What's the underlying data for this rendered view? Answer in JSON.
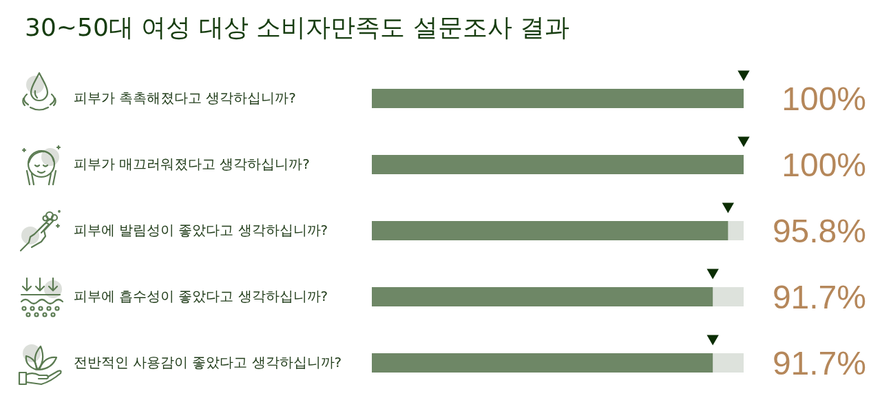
{
  "chart_data": {
    "type": "bar",
    "orientation": "horizontal",
    "title": "30~50대 여성 대상 소비자만족도 설문조사 결과",
    "categories": [
      "피부가 촉촉해졌다고 생각하십니까?",
      "피부가 매끄러워졌다고 생각하십니까?",
      "피부에 발림성이 좋았다고 생각하십니까?",
      "피부에 흡수성이 좋았다고 생각하십니까?",
      "전반적인 사용감이 좋았다고 생각하십니까?"
    ],
    "series": [
      {
        "color": "#6e8766",
        "values": [
          100,
          100,
          95.8,
          91.7,
          91.7
        ],
        "value_labels": [
          "100%",
          "100%",
          "95.8%",
          "91.7%",
          "91.7%"
        ]
      },
      {
        "type": "scatter",
        "color": "#0b2d03",
        "values": [
          100,
          100,
          95.8,
          91.7,
          91.7
        ]
      }
    ],
    "xlim": [
      0,
      100
    ],
    "marker": "triangle",
    "tick_labels": "y"
  }
}
